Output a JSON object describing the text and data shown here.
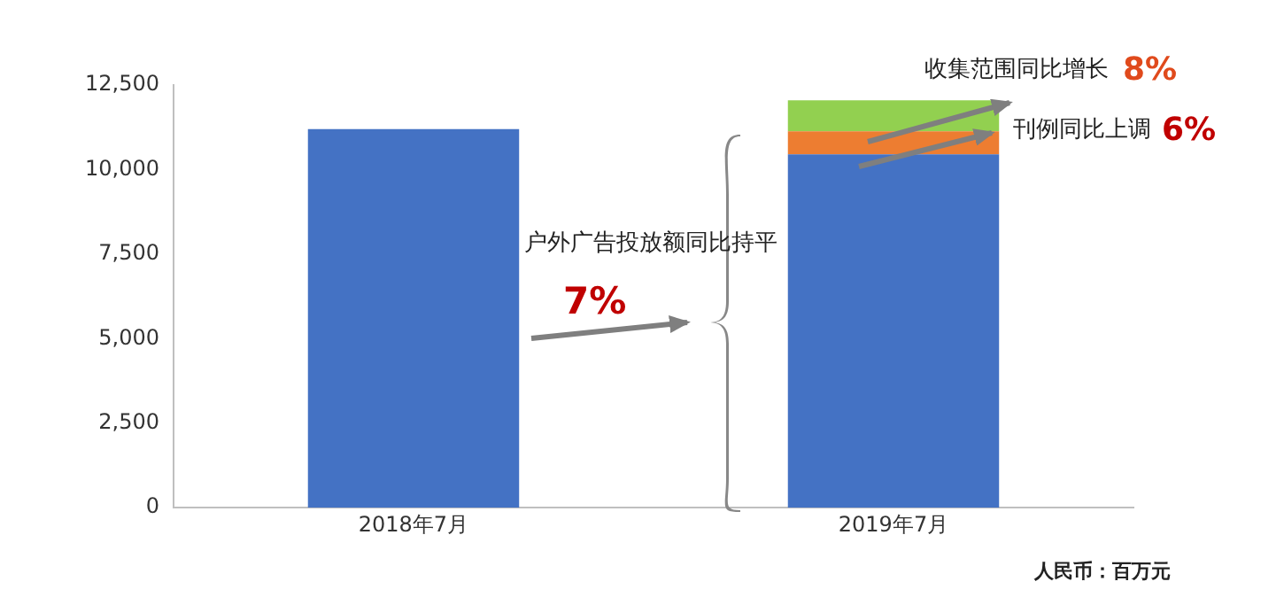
{
  "chart_data": {
    "type": "bar",
    "stacked": true,
    "categories": [
      "2018年7月",
      "2019年7月"
    ],
    "series": [
      {
        "color": "#4472c4",
        "values": [
          11200,
          10450
        ]
      },
      {
        "color": "#ed7d31",
        "values": [
          null,
          680
        ]
      },
      {
        "color": "#92d050",
        "values": [
          null,
          920
        ]
      }
    ],
    "ylim": [
      0,
      12500
    ],
    "yticks": [
      {
        "value": 0,
        "label": "0"
      },
      {
        "value": 2500,
        "label": "2,500"
      },
      {
        "value": 5000,
        "label": "5,000"
      },
      {
        "value": 7500,
        "label": "7,500"
      },
      {
        "value": 10000,
        "label": "10,000"
      },
      {
        "value": 12500,
        "label": "12,500"
      }
    ],
    "grid": false,
    "legend": false,
    "annotations": [
      "户外广告投放额同比持平",
      "7%",
      "收集范围同比增长",
      "8%",
      "刊例同比上调",
      "6%",
      "人民币：百万元"
    ]
  }
}
